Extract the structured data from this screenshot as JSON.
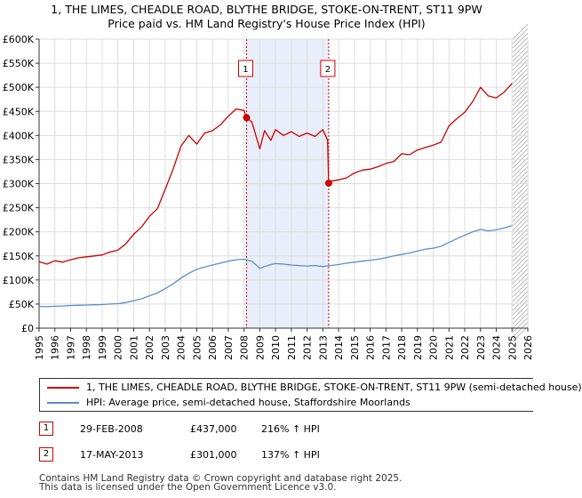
{
  "colors": {
    "property_line": "#cc0000",
    "hpi_line": "#5b8ec9",
    "shade": "#e8eefa",
    "grid": "#dddddd",
    "marker": "#cc0000"
  },
  "chart_data": {
    "type": "line",
    "title": "1, THE LIMES, CHEADLE ROAD, BLYTHE BRIDGE, STOKE-ON-TRENT, ST11 9PW",
    "subtitle": "Price paid vs. HM Land Registry's House Price Index (HPI)",
    "xlabel": "",
    "ylabel": "",
    "xlim": [
      1995,
      2026
    ],
    "ylim": [
      0,
      600000
    ],
    "grid": true,
    "legend_position": "below",
    "y_ticks": [
      {
        "value": 0,
        "label": "£0"
      },
      {
        "value": 50000,
        "label": "£50K"
      },
      {
        "value": 100000,
        "label": "£100K"
      },
      {
        "value": 150000,
        "label": "£150K"
      },
      {
        "value": 200000,
        "label": "£200K"
      },
      {
        "value": 250000,
        "label": "£250K"
      },
      {
        "value": 300000,
        "label": "£300K"
      },
      {
        "value": 350000,
        "label": "£350K"
      },
      {
        "value": 400000,
        "label": "£400K"
      },
      {
        "value": 450000,
        "label": "£450K"
      },
      {
        "value": 500000,
        "label": "£500K"
      },
      {
        "value": 550000,
        "label": "£550K"
      },
      {
        "value": 600000,
        "label": "£600K"
      }
    ],
    "x_ticks": [
      "1995",
      "1996",
      "1997",
      "1998",
      "1999",
      "2000",
      "2001",
      "2002",
      "2003",
      "2004",
      "2005",
      "2006",
      "2007",
      "2008",
      "2009",
      "2010",
      "2011",
      "2012",
      "2013",
      "2014",
      "2015",
      "2016",
      "2017",
      "2018",
      "2019",
      "2020",
      "2021",
      "2022",
      "2023",
      "2024",
      "2025",
      "2026"
    ],
    "shaded_range": [
      2008.16,
      2013.37
    ],
    "forecast_start": 2025.05,
    "series": [
      {
        "name": "1, THE LIMES, CHEADLE ROAD, BLYTHE BRIDGE, STOKE-ON-TRENT, ST11 9PW (semi-detached house)",
        "color": "#cc0000",
        "x": [
          1995.0,
          1995.5,
          1996.0,
          1996.5,
          1997.0,
          1997.5,
          1998.0,
          1998.5,
          1999.0,
          1999.5,
          2000.0,
          2000.5,
          2001.0,
          2001.5,
          2002.0,
          2002.5,
          2003.0,
          2003.5,
          2004.0,
          2004.5,
          2005.0,
          2005.5,
          2006.0,
          2006.5,
          2007.0,
          2007.5,
          2008.0,
          2008.16,
          2008.5,
          2009.0,
          2009.3,
          2009.7,
          2010.0,
          2010.5,
          2011.0,
          2011.5,
          2012.0,
          2012.5,
          2013.0,
          2013.3,
          2013.37,
          2013.5,
          2014.0,
          2014.5,
          2015.0,
          2015.5,
          2016.0,
          2016.5,
          2017.0,
          2017.5,
          2018.0,
          2018.5,
          2019.0,
          2019.5,
          2020.0,
          2020.5,
          2021.0,
          2021.5,
          2022.0,
          2022.5,
          2023.0,
          2023.5,
          2024.0,
          2024.5,
          2025.0
        ],
        "values": [
          138000,
          133000,
          140000,
          137000,
          142000,
          146000,
          148000,
          150000,
          152000,
          158000,
          162000,
          175000,
          195000,
          210000,
          232000,
          248000,
          288000,
          330000,
          378000,
          400000,
          382000,
          405000,
          410000,
          422000,
          440000,
          455000,
          452000,
          437000,
          428000,
          372000,
          410000,
          390000,
          412000,
          400000,
          408000,
          398000,
          405000,
          398000,
          412000,
          390000,
          301000,
          305000,
          308000,
          312000,
          322000,
          328000,
          330000,
          335000,
          342000,
          346000,
          362000,
          360000,
          370000,
          375000,
          380000,
          386000,
          420000,
          435000,
          448000,
          470000,
          500000,
          482000,
          478000,
          490000,
          508000
        ]
      },
      {
        "name": "HPI: Average price, semi-detached house, Staffordshire Moorlands",
        "color": "#5b8ec9",
        "x": [
          1995.0,
          1995.5,
          1996.0,
          1996.5,
          1997.0,
          1997.5,
          1998.0,
          1998.5,
          1999.0,
          1999.5,
          2000.0,
          2000.5,
          2001.0,
          2001.5,
          2002.0,
          2002.5,
          2003.0,
          2003.5,
          2004.0,
          2004.5,
          2005.0,
          2005.5,
          2006.0,
          2006.5,
          2007.0,
          2007.5,
          2008.0,
          2008.5,
          2009.0,
          2009.3,
          2009.7,
          2010.0,
          2010.5,
          2011.0,
          2011.5,
          2012.0,
          2012.5,
          2013.0,
          2013.5,
          2014.0,
          2014.5,
          2015.0,
          2015.5,
          2016.0,
          2016.5,
          2017.0,
          2017.5,
          2018.0,
          2018.5,
          2019.0,
          2019.5,
          2020.0,
          2020.5,
          2021.0,
          2021.5,
          2022.0,
          2022.5,
          2023.0,
          2023.5,
          2024.0,
          2024.5,
          2025.0
        ],
        "values": [
          45000,
          44500,
          45500,
          46000,
          47000,
          47500,
          48000,
          48500,
          49000,
          50000,
          51000,
          53000,
          57000,
          61000,
          67000,
          73000,
          82000,
          92000,
          104000,
          114000,
          122000,
          127000,
          131000,
          135000,
          139000,
          142000,
          143000,
          139000,
          124000,
          128000,
          132000,
          134000,
          133000,
          131000,
          130000,
          129000,
          130000,
          128000,
          130000,
          132000,
          135000,
          137000,
          139000,
          141000,
          143000,
          146000,
          150000,
          153000,
          156000,
          160000,
          164000,
          166000,
          170000,
          178000,
          186000,
          193000,
          200000,
          205000,
          202000,
          204000,
          208000,
          213000
        ]
      }
    ],
    "annotations": [
      {
        "label": "1",
        "date": "29-FEB-2008",
        "x": 2008.16,
        "price": 437000,
        "price_text": "£437,000",
        "hpi_text": "216% ↑ HPI"
      },
      {
        "label": "2",
        "date": "17-MAY-2013",
        "x": 2013.37,
        "price": 301000,
        "price_text": "£301,000",
        "hpi_text": "137% ↑ HPI"
      }
    ]
  },
  "legend": {
    "items": [
      {
        "label": "1, THE LIMES, CHEADLE ROAD, BLYTHE BRIDGE, STOKE-ON-TRENT, ST11 9PW (semi-detached house)"
      },
      {
        "label": "HPI: Average price, semi-detached house, Staffordshire Moorlands"
      }
    ]
  },
  "transactions": [
    {
      "label": "1",
      "date": "29-FEB-2008",
      "price": "£437,000",
      "hpi": "216% ↑ HPI"
    },
    {
      "label": "2",
      "date": "17-MAY-2013",
      "price": "£301,000",
      "hpi": "137% ↑ HPI"
    }
  ],
  "footer": {
    "line1": "Contains HM Land Registry data © Crown copyright and database right 2025.",
    "line2": "This data is licensed under the Open Government Licence v3.0."
  }
}
